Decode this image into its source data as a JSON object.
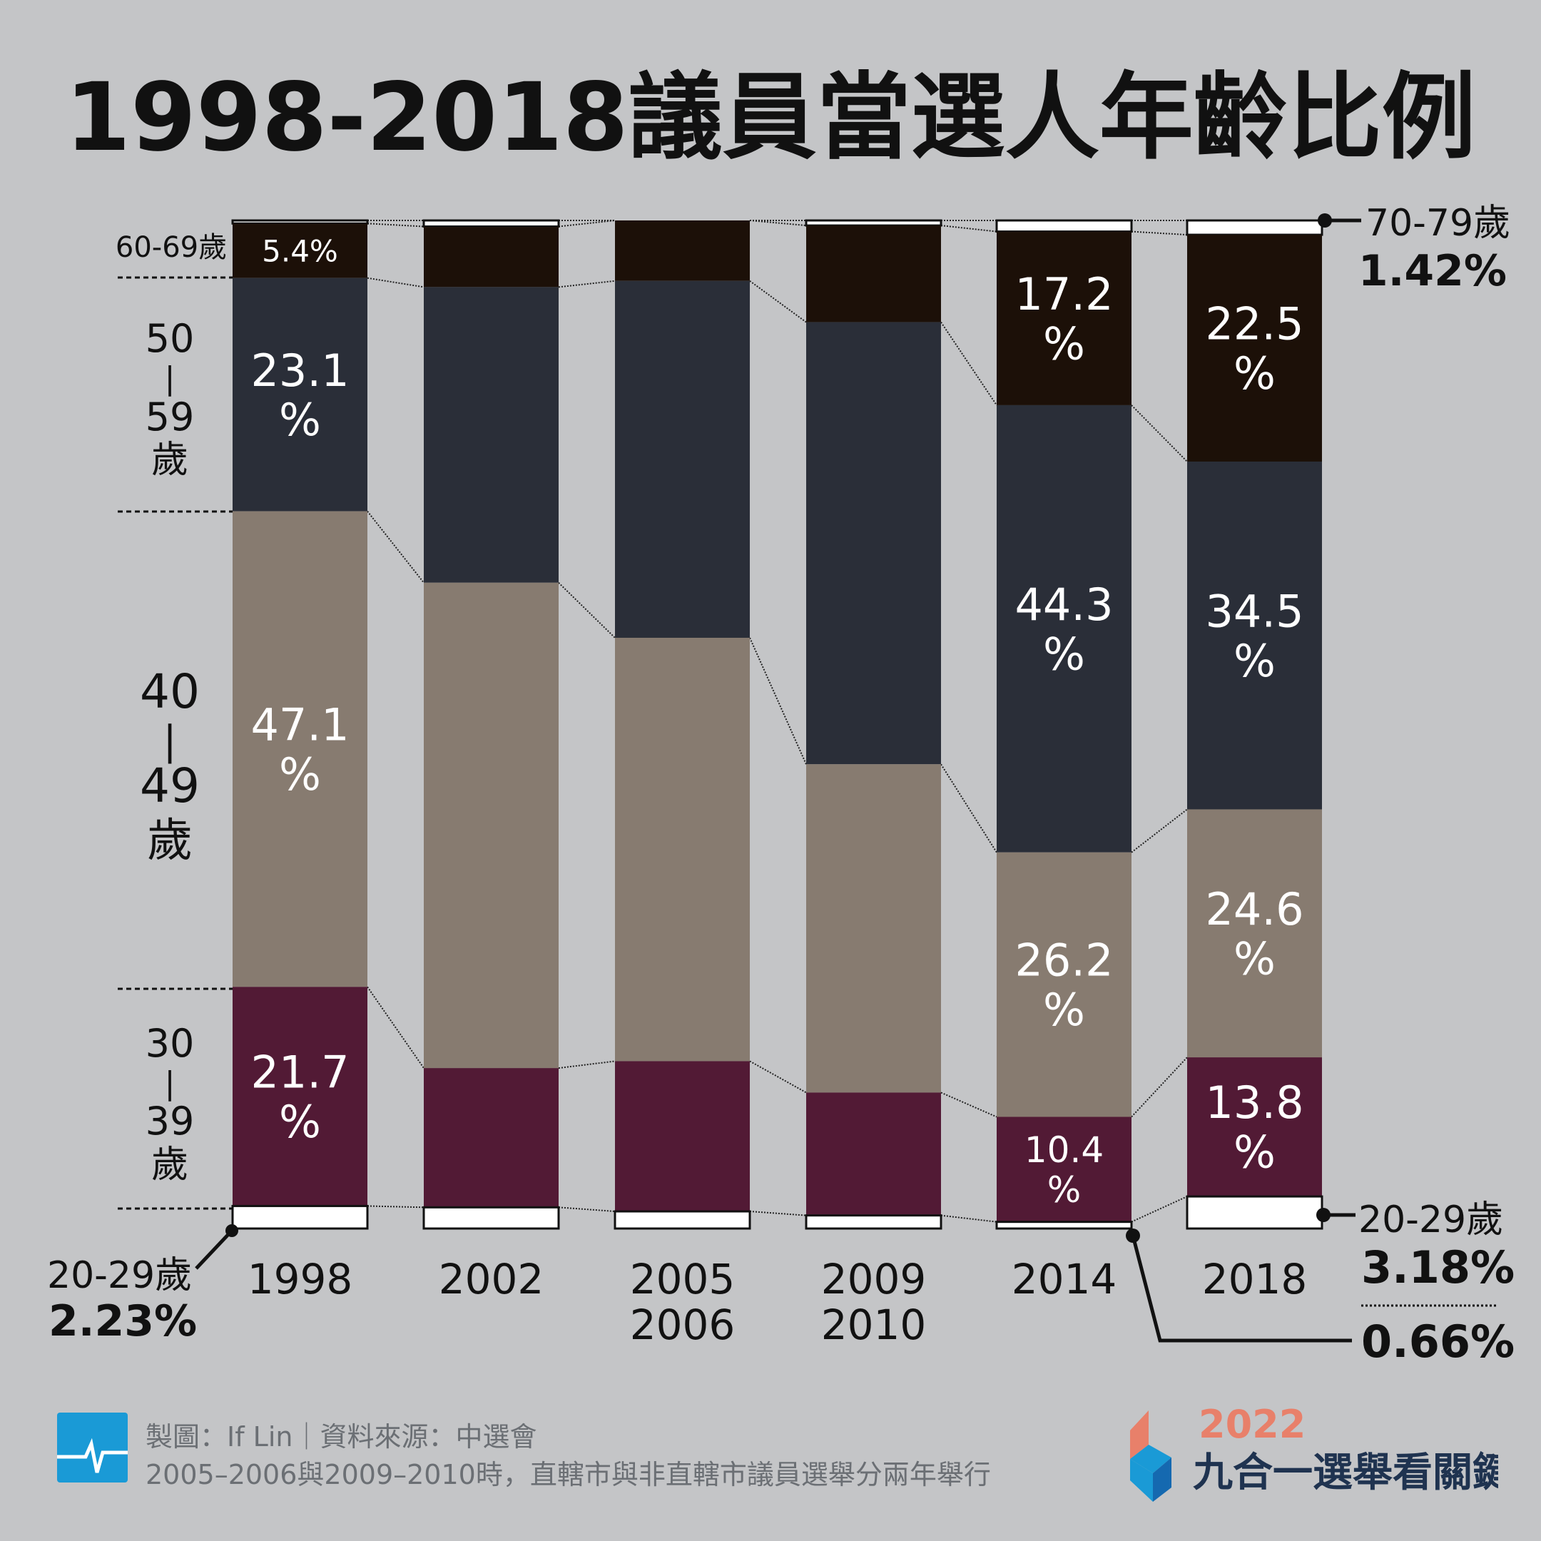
{
  "title": "1998-2018議員當選人年齡比例",
  "chart_data": {
    "type": "bar",
    "stacked": true,
    "normalized": true,
    "title": "1998-2018議員當選人年齡比例",
    "categories": [
      "1998",
      "2002",
      "2005\n2006",
      "2009\n2010",
      "2014",
      "2018"
    ],
    "ylim": [
      0,
      100
    ],
    "series": [
      {
        "name": "70-79歲",
        "color": "#ffffff",
        "values": [
          0.3,
          0.6,
          0.0,
          0.5,
          1.1,
          1.42
        ],
        "labels": [
          "",
          "",
          "",
          "",
          "",
          ""
        ]
      },
      {
        "name": "60-69歲",
        "color": "#1c1008",
        "values": [
          5.4,
          6.0,
          6.0,
          9.6,
          17.2,
          22.5
        ],
        "labels": [
          "5.4%",
          "",
          "",
          "",
          "17.2\n%",
          "22.5\n%"
        ]
      },
      {
        "name": "50-59歲",
        "color": "#2a2e38",
        "values": [
          23.1,
          29.3,
          35.4,
          43.9,
          44.3,
          34.5
        ],
        "labels": [
          "23.1\n%",
          "",
          "",
          "",
          "44.3\n%",
          "34.5\n%"
        ]
      },
      {
        "name": "40-49歲",
        "color": "#877b70",
        "values": [
          47.1,
          48.1,
          42.0,
          32.6,
          26.2,
          24.6
        ],
        "labels": [
          "47.1\n%",
          "",
          "",
          "",
          "26.2\n%",
          "24.6\n%"
        ]
      },
      {
        "name": "30-39歲",
        "color": "#521a35",
        "values": [
          21.7,
          13.8,
          14.9,
          12.2,
          10.4,
          13.8
        ],
        "labels": [
          "21.7\n%",
          "",
          "",
          "",
          "10.4\n%",
          "13.8\n%"
        ]
      },
      {
        "name": "20-29歲",
        "color": "#ffffff",
        "values": [
          2.23,
          2.1,
          1.7,
          1.3,
          0.66,
          3.18
        ],
        "labels": [
          "",
          "",
          "",
          "",
          "",
          ""
        ]
      }
    ],
    "grid": false,
    "legend": "none"
  },
  "left_labels": {
    "age_60_69": "60-69歲",
    "age_50_59": [
      "50",
      "|",
      "59",
      "歲"
    ],
    "age_40_49": [
      "40",
      "|",
      "49",
      "歲"
    ],
    "age_30_39": [
      "30",
      "|",
      "39",
      "歲"
    ],
    "age_20_29": "20-29歲",
    "age_20_29_1998_value": "2.23%"
  },
  "right_labels": {
    "age_70_79": "70-79歲",
    "age_70_79_value": "1.42%",
    "age_20_29": "20-29歲",
    "age_20_29_2018_value": "3.18%",
    "age_20_29_2014_value": "0.66%"
  },
  "footer": {
    "credit": "製圖：If Lin｜資料來源：中選會",
    "note": "2005–2006與2009–2010時，直轄市與非直轄市議員選舉分兩年舉行",
    "logo_year": "2022",
    "logo_text": "九合一選舉看關鍵",
    "icon_color": "#1a9ad6",
    "logo_year_color": "#e8806a",
    "logo_text_color": "#1f3350"
  }
}
